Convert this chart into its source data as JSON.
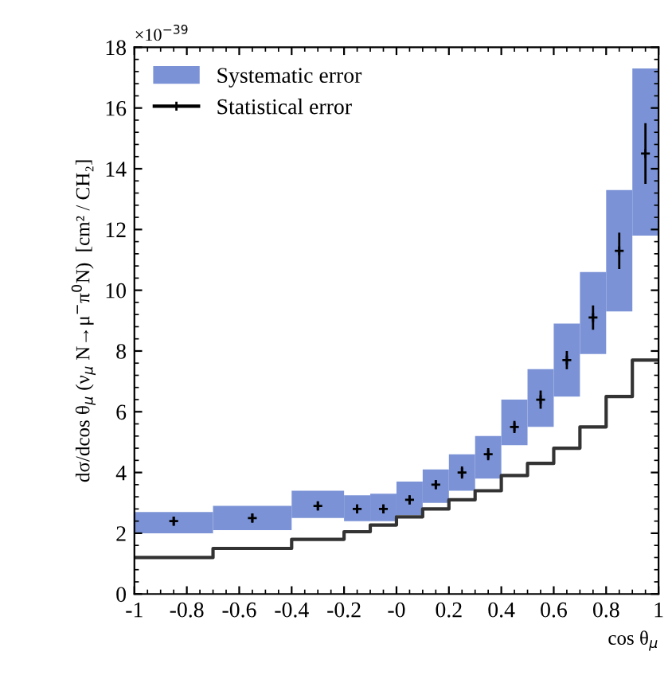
{
  "chart_data": {
    "type": "bar",
    "xlabel": "cos θ$_{μ}$",
    "ylabel": "dσ/dcos θ$_{μ}$ (ν$_{μ}$ N→μ$^{−}$π$^{0}$N)  [cm² / CH₂]",
    "annotations": [
      "×10$^{−39}$"
    ],
    "series": [
      {
        "name": "Systematic error",
        "color": "#7b93d6",
        "x": [
          -0.85,
          -0.55,
          -0.3,
          -0.15,
          -0.05,
          0.05,
          0.15,
          0.25,
          0.35,
          0.45,
          0.55,
          0.65,
          0.75,
          0.85,
          0.95
        ],
        "base": [
          2.0,
          2.1,
          2.5,
          2.4,
          2.4,
          2.6,
          3.0,
          3.4,
          3.8,
          4.9,
          5.5,
          6.5,
          7.9,
          9.3,
          11.8
        ],
        "values": [
          0.7,
          0.8,
          0.9,
          0.85,
          0.9,
          1.1,
          1.1,
          1.2,
          1.4,
          1.5,
          1.9,
          2.4,
          2.7,
          4.0,
          5.5
        ]
      },
      {
        "type": "scatter",
        "name": "Statistical error",
        "color": "#000000",
        "marker": "cross",
        "x": [
          -0.85,
          -0.55,
          -0.3,
          -0.15,
          -0.05,
          0.05,
          0.15,
          0.25,
          0.35,
          0.45,
          0.55,
          0.65,
          0.75,
          0.85,
          0.95
        ],
        "values": [
          2.4,
          2.5,
          2.9,
          2.8,
          2.8,
          3.1,
          3.6,
          4.0,
          4.6,
          5.5,
          6.4,
          7.7,
          9.1,
          11.3,
          14.5
        ],
        "errors": [
          0.15,
          0.15,
          0.15,
          0.15,
          0.15,
          0.15,
          0.15,
          0.2,
          0.2,
          0.2,
          0.3,
          0.3,
          0.4,
          0.6,
          1.0
        ]
      },
      {
        "type": "step",
        "color": "#333333",
        "x": [
          -1,
          -0.7,
          -0.4,
          -0.2,
          -0.1,
          0,
          0.1,
          0.2,
          0.3,
          0.4,
          0.5,
          0.6,
          0.7,
          0.8,
          0.9,
          1
        ],
        "values": [
          1.2,
          1.5,
          1.8,
          2.05,
          2.27,
          2.54,
          2.8,
          3.1,
          3.4,
          3.9,
          4.3,
          4.8,
          5.5,
          6.5,
          7.7,
          7.7
        ]
      }
    ],
    "xlim": [
      -1,
      1
    ],
    "xticks": [
      -1,
      -0.8,
      -0.6,
      -0.4,
      -0.2,
      {
        "value": 0,
        "label": "-0"
      },
      0.2,
      0.4,
      0.6,
      0.8,
      1
    ],
    "ylim": [
      0,
      18
    ],
    "yticks": [
      0,
      2,
      4,
      6,
      8,
      10,
      12,
      14,
      16,
      18
    ],
    "legend": "top left",
    "grid": false
  }
}
